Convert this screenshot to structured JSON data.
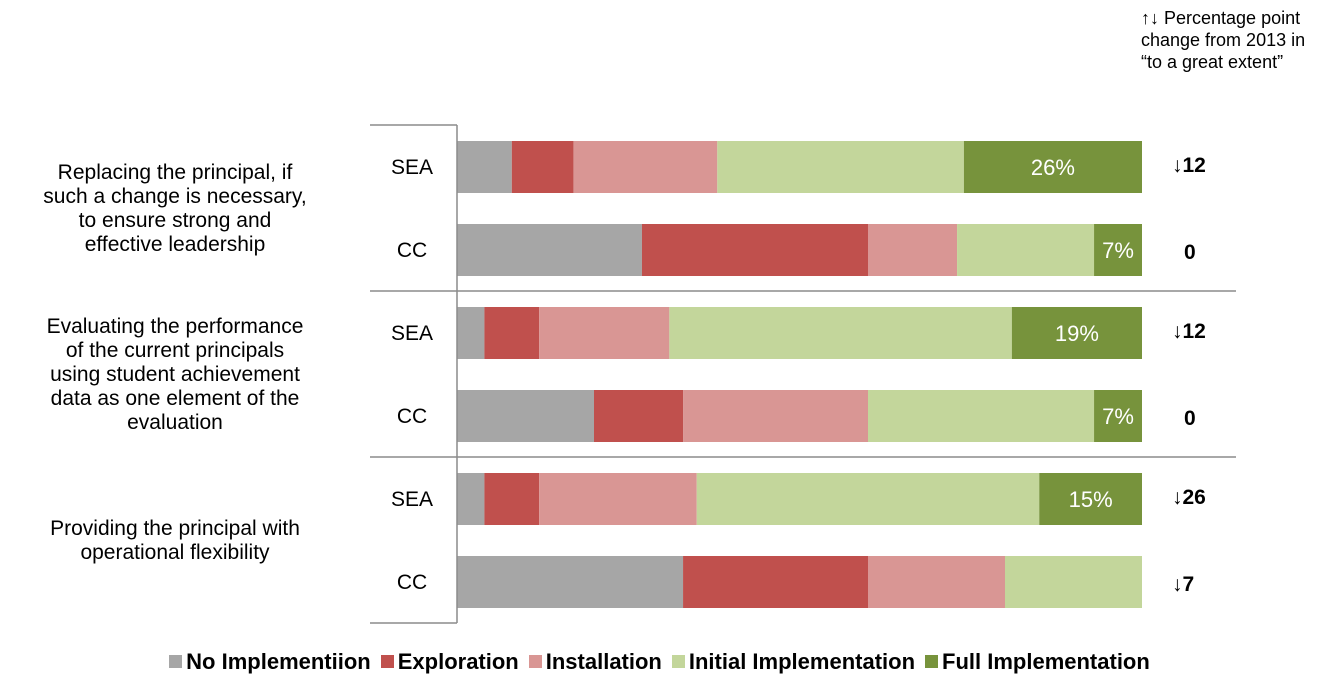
{
  "note": {
    "line1": "↑↓ Percentage point",
    "line2": "change from 2013 in",
    "line3": "“to a great extent”"
  },
  "chart_data": {
    "type": "bar",
    "orientation": "horizontal",
    "stacked": true,
    "xlim": [
      0,
      100
    ],
    "grid": false,
    "legend_position": "bottom",
    "groups": [
      {
        "label_lines": [
          "Replacing the principal, if",
          "such a change is necessary,",
          "to ensure strong and",
          "effective leadership"
        ],
        "bars": [
          {
            "label": "SEA",
            "values": [
              8,
              9,
              21,
              36,
              26
            ],
            "change": "↓12"
          },
          {
            "label": "CC",
            "values": [
              27,
              33,
              13,
              20,
              7
            ],
            "change": "0"
          }
        ]
      },
      {
        "label_lines": [
          "Evaluating the performance",
          "of the current principals",
          "using student achievement",
          "data as one element of the",
          "evaluation"
        ],
        "bars": [
          {
            "label": "SEA",
            "values": [
              4,
              8,
              19,
              50,
              19
            ],
            "change": "↓12"
          },
          {
            "label": "CC",
            "values": [
              20,
              13,
              27,
              33,
              7
            ],
            "change": "0"
          }
        ]
      },
      {
        "label_lines": [
          "Providing the principal with",
          "operational flexibility"
        ],
        "bars": [
          {
            "label": "SEA",
            "values": [
              4,
              8,
              23,
              50,
              15
            ],
            "change": "↓26"
          },
          {
            "label": "CC",
            "values": [
              33,
              27,
              20,
              20,
              0
            ],
            "change": "↓7"
          }
        ]
      }
    ],
    "series": [
      {
        "name": "No Implementiion",
        "color": "#a6a6a6"
      },
      {
        "name": "Exploration",
        "color": "#c0504d"
      },
      {
        "name": "Installation",
        "color": "#d99694"
      },
      {
        "name": "Initial Implementation",
        "color": "#c3d69b"
      },
      {
        "name": "Full Implementation",
        "color": "#77933c"
      }
    ],
    "data_labels": {
      "series_index": 4,
      "suffix": "%"
    }
  }
}
